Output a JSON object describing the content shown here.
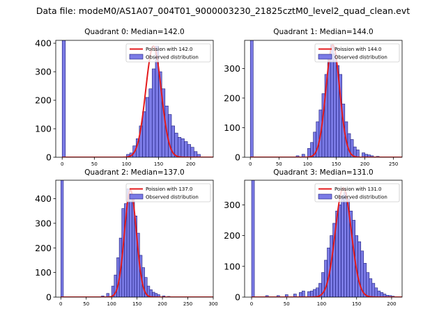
{
  "suptitle": "Data file: modeM0/AS1A07_004T01_9000003230_21825cztM0_level2_quad_clean.evt",
  "colors": {
    "bar_fill": "#7b7be6",
    "bar_edge": "#1a1a7a",
    "poisson_line": "#e41a1c",
    "axis": "#000000"
  },
  "chart_data": [
    {
      "type": "bar",
      "title": "Quadrant 0: Median=142.0",
      "legend": {
        "placement": "top-right",
        "line_label": "Poission with 142.0",
        "bar_label": "Observed distribution"
      },
      "xlim": [
        -10,
        235
      ],
      "ylim": [
        0,
        410
      ],
      "xticks": [
        0,
        50,
        100,
        150,
        200
      ],
      "yticks": [
        0,
        100,
        200,
        300,
        400
      ],
      "bin_width": 5,
      "bins": [
        [
          0,
          410
        ],
        [
          100,
          10
        ],
        [
          105,
          15
        ],
        [
          110,
          40
        ],
        [
          115,
          65
        ],
        [
          120,
          110
        ],
        [
          125,
          160
        ],
        [
          130,
          210
        ],
        [
          135,
          240
        ],
        [
          140,
          310
        ],
        [
          145,
          390
        ],
        [
          150,
          300
        ],
        [
          155,
          240
        ],
        [
          160,
          180
        ],
        [
          165,
          150
        ],
        [
          170,
          110
        ],
        [
          175,
          85
        ],
        [
          180,
          70
        ],
        [
          185,
          65
        ],
        [
          190,
          55
        ],
        [
          195,
          45
        ],
        [
          200,
          35
        ],
        [
          205,
          20
        ],
        [
          210,
          10
        ]
      ],
      "poisson": {
        "mu": 142,
        "peak": 390,
        "sigma": 12
      }
    },
    {
      "type": "bar",
      "title": "Quadrant 1: Median=144.0",
      "legend": {
        "placement": "top-right",
        "line_label": "Poission with 144.0",
        "bar_label": "Observed distribution"
      },
      "xlim": [
        -10,
        265
      ],
      "ylim": [
        0,
        395
      ],
      "xticks": [
        0,
        50,
        100,
        150,
        200,
        250
      ],
      "yticks": [
        0,
        100,
        200,
        300
      ],
      "bin_width": 5,
      "bins": [
        [
          0,
          395
        ],
        [
          80,
          5
        ],
        [
          90,
          10
        ],
        [
          100,
          30
        ],
        [
          105,
          50
        ],
        [
          110,
          85
        ],
        [
          115,
          120
        ],
        [
          120,
          160
        ],
        [
          125,
          215
        ],
        [
          130,
          280
        ],
        [
          135,
          345
        ],
        [
          140,
          380
        ],
        [
          145,
          350
        ],
        [
          150,
          310
        ],
        [
          155,
          280
        ],
        [
          160,
          180
        ],
        [
          165,
          120
        ],
        [
          170,
          80
        ],
        [
          175,
          60
        ],
        [
          180,
          35
        ],
        [
          185,
          25
        ],
        [
          195,
          15
        ],
        [
          200,
          10
        ],
        [
          205,
          8
        ],
        [
          210,
          5
        ],
        [
          220,
          3
        ]
      ],
      "poisson": {
        "mu": 144,
        "peak": 380,
        "sigma": 12
      }
    },
    {
      "type": "bar",
      "title": "Quadrant 2: Median=137.0",
      "legend": {
        "placement": "top-right",
        "line_label": "Poission with 137.0",
        "bar_label": "Observed distribution"
      },
      "xlim": [
        -10,
        300
      ],
      "ylim": [
        0,
        475
      ],
      "xticks": [
        0,
        50,
        100,
        150,
        200,
        250,
        300
      ],
      "yticks": [
        0,
        100,
        200,
        300,
        400
      ],
      "bin_width": 5,
      "bins": [
        [
          0,
          475
        ],
        [
          80,
          5
        ],
        [
          90,
          15
        ],
        [
          100,
          45
        ],
        [
          105,
          90
        ],
        [
          110,
          160
        ],
        [
          115,
          240
        ],
        [
          120,
          360
        ],
        [
          125,
          380
        ],
        [
          130,
          440
        ],
        [
          135,
          420
        ],
        [
          140,
          400
        ],
        [
          145,
          330
        ],
        [
          150,
          260
        ],
        [
          155,
          170
        ],
        [
          160,
          120
        ],
        [
          165,
          80
        ],
        [
          170,
          45
        ],
        [
          175,
          30
        ],
        [
          180,
          20
        ],
        [
          185,
          15
        ],
        [
          190,
          10
        ],
        [
          200,
          5
        ],
        [
          210,
          3
        ]
      ],
      "poisson": {
        "mu": 137,
        "peak": 435,
        "sigma": 11.7
      }
    },
    {
      "type": "bar",
      "title": "Quadrant 3: Median=131.0",
      "legend": {
        "placement": "top-right",
        "line_label": "Poission with 131.0",
        "bar_label": "Observed distribution"
      },
      "xlim": [
        -10,
        215
      ],
      "ylim": [
        0,
        380
      ],
      "xticks": [
        0,
        50,
        100,
        150,
        200
      ],
      "yticks": [
        0,
        100,
        200,
        300
      ],
      "bin_width": 4,
      "bins": [
        [
          0,
          380
        ],
        [
          20,
          5
        ],
        [
          36,
          5
        ],
        [
          48,
          8
        ],
        [
          60,
          10
        ],
        [
          68,
          15
        ],
        [
          72,
          20
        ],
        [
          80,
          18
        ],
        [
          84,
          20
        ],
        [
          88,
          25
        ],
        [
          92,
          30
        ],
        [
          96,
          45
        ],
        [
          100,
          80
        ],
        [
          104,
          120
        ],
        [
          108,
          160
        ],
        [
          112,
          200
        ],
        [
          116,
          240
        ],
        [
          120,
          280
        ],
        [
          124,
          300
        ],
        [
          128,
          330
        ],
        [
          132,
          340
        ],
        [
          136,
          320
        ],
        [
          140,
          280
        ],
        [
          144,
          250
        ],
        [
          148,
          200
        ],
        [
          152,
          180
        ],
        [
          156,
          150
        ],
        [
          160,
          110
        ],
        [
          164,
          80
        ],
        [
          168,
          60
        ],
        [
          172,
          45
        ],
        [
          176,
          30
        ],
        [
          180,
          20
        ],
        [
          184,
          15
        ],
        [
          188,
          10
        ],
        [
          192,
          6
        ],
        [
          196,
          5
        ],
        [
          200,
          3
        ]
      ],
      "poisson": {
        "mu": 131,
        "peak": 355,
        "sigma": 11.4
      }
    }
  ]
}
